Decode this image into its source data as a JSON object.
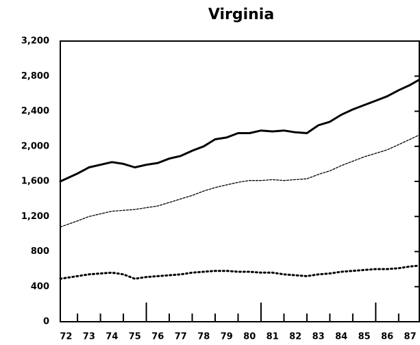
{
  "chart_data": {
    "type": "line",
    "title": "Virginia",
    "x": [
      72.25,
      73,
      73.5,
      74,
      74.5,
      75,
      75.5,
      76,
      76.5,
      77,
      77.5,
      78,
      78.5,
      79,
      79.5,
      80,
      80.5,
      81,
      81.5,
      82,
      82.5,
      83,
      83.5,
      84,
      84.5,
      85,
      85.5,
      86,
      86.5,
      87,
      87.5,
      87.9
    ],
    "series": [
      {
        "color": "#000000",
        "style": "solid",
        "values": [
          1600,
          1690,
          1760,
          1790,
          1820,
          1800,
          1760,
          1790,
          1810,
          1860,
          1890,
          1950,
          2000,
          2080,
          2100,
          2150,
          2150,
          2180,
          2170,
          2180,
          2160,
          2150,
          2240,
          2280,
          2360,
          2420,
          2470,
          2520,
          2570,
          2640,
          2700,
          2760
        ]
      },
      {
        "color": "#000000",
        "style": "dashed",
        "values": [
          1080,
          1150,
          1200,
          1230,
          1260,
          1270,
          1280,
          1300,
          1320,
          1360,
          1400,
          1440,
          1490,
          1530,
          1560,
          1590,
          1610,
          1610,
          1620,
          1610,
          1620,
          1630,
          1680,
          1720,
          1780,
          1830,
          1880,
          1920,
          1960,
          2020,
          2080,
          2130
        ]
      },
      {
        "color": "#000000",
        "style": "dotted",
        "values": [
          490,
          520,
          540,
          550,
          560,
          540,
          490,
          510,
          520,
          530,
          540,
          560,
          570,
          580,
          580,
          570,
          570,
          560,
          560,
          540,
          530,
          520,
          540,
          550,
          570,
          580,
          590,
          600,
          600,
          610,
          630,
          640
        ]
      }
    ],
    "xlim": [
      72.25,
      87.9
    ],
    "xticks": [
      {
        "value": 72.5,
        "label": "72"
      },
      {
        "value": 73.5,
        "label": "73"
      },
      {
        "value": 74.5,
        "label": "74"
      },
      {
        "value": 75.5,
        "label": "75"
      },
      {
        "value": 76.5,
        "label": "76"
      },
      {
        "value": 77.5,
        "label": "77"
      },
      {
        "value": 78.5,
        "label": "78"
      },
      {
        "value": 79.5,
        "label": "79"
      },
      {
        "value": 80.5,
        "label": "80"
      },
      {
        "value": 81.5,
        "label": "81"
      },
      {
        "value": 82.5,
        "label": "82"
      },
      {
        "value": 83.5,
        "label": "83"
      },
      {
        "value": 84.5,
        "label": "84"
      },
      {
        "value": 85.5,
        "label": "85"
      },
      {
        "value": 86.5,
        "label": "86"
      },
      {
        "value": 87.5,
        "label": "87"
      }
    ],
    "ylim": [
      0,
      3200
    ],
    "yticks": [
      0,
      400,
      800,
      {
        "value": 1200,
        "label": "1,200"
      },
      {
        "value": 1600,
        "label": "1,600"
      },
      {
        "value": 2000,
        "label": "2,000"
      },
      {
        "value": 2400,
        "label": "2,400"
      },
      {
        "value": 2800,
        "label": "2,800"
      },
      {
        "value": 3200,
        "label": "3,200"
      }
    ],
    "grid": false
  }
}
